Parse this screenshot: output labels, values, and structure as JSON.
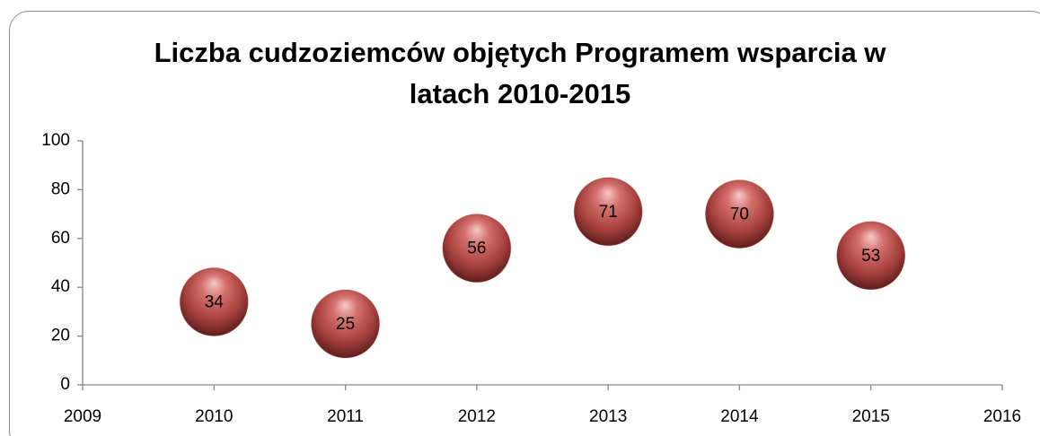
{
  "chart_data": {
    "type": "scatter",
    "title": "Liczba cudzoziemców objętych Programem wsparcia w latach 2010-2015",
    "x": [
      2010,
      2011,
      2012,
      2013,
      2014,
      2015
    ],
    "values": [
      34,
      25,
      56,
      71,
      70,
      53
    ],
    "color": "#c0504d",
    "xlim": [
      2009,
      2016
    ],
    "xticks": [
      2009,
      2010,
      2011,
      2012,
      2013,
      2014,
      2015,
      2016
    ],
    "ylim": [
      0,
      100
    ],
    "yticks": [
      0,
      20,
      40,
      60,
      80,
      100
    ],
    "grid": false
  }
}
